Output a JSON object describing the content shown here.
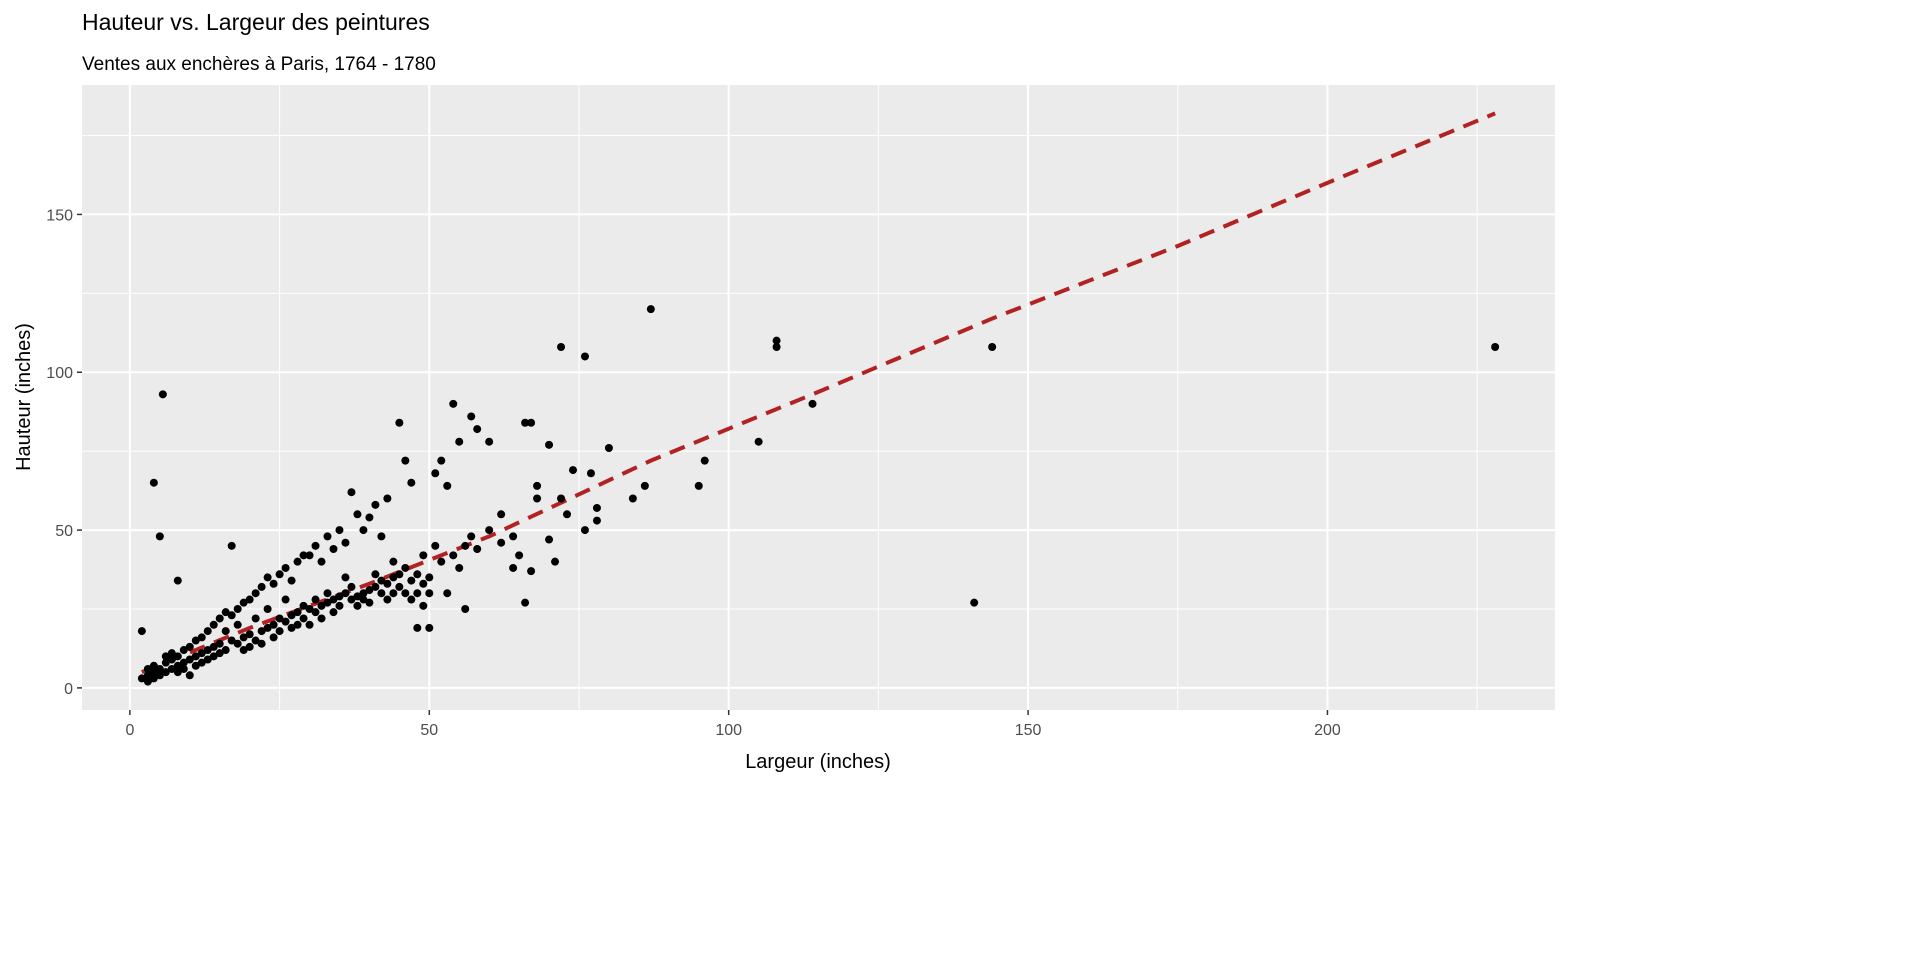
{
  "chart_data": {
    "type": "scatter",
    "title": "Hauteur vs. Largeur des peintures",
    "subtitle": "Ventes aux enchères à Paris, 1764 - 1780",
    "xlabel": "Largeur (inches)",
    "ylabel": "Hauteur (inches)",
    "xlim": [
      -8,
      238
    ],
    "ylim": [
      -7,
      191
    ],
    "xticks": [
      0,
      50,
      100,
      150,
      200
    ],
    "yticks": [
      0,
      50,
      100,
      150
    ],
    "grid": true,
    "colors": {
      "points": "#000000",
      "trend": "#b22222",
      "panel": "#ebebeb",
      "grid": "#ffffff"
    },
    "trend_line": {
      "style": "dashed",
      "x": [
        2,
        20,
        40,
        60,
        87,
        114,
        144,
        175,
        200,
        228
      ],
      "y": [
        5,
        19,
        33,
        48,
        72,
        93,
        117,
        140,
        160,
        182
      ]
    },
    "points": [
      [
        2,
        18
      ],
      [
        5.5,
        93
      ],
      [
        4,
        65
      ],
      [
        5,
        48
      ],
      [
        8,
        34
      ],
      [
        17,
        45
      ],
      [
        2,
        3
      ],
      [
        3,
        2
      ],
      [
        3,
        4
      ],
      [
        4,
        3
      ],
      [
        4,
        5
      ],
      [
        5,
        4
      ],
      [
        5,
        6
      ],
      [
        6,
        5
      ],
      [
        6,
        8
      ],
      [
        7,
        6
      ],
      [
        7,
        9
      ],
      [
        8,
        7
      ],
      [
        8,
        10
      ],
      [
        9,
        8
      ],
      [
        9,
        12
      ],
      [
        10,
        9
      ],
      [
        10,
        13
      ],
      [
        11,
        10
      ],
      [
        11,
        15
      ],
      [
        12,
        11
      ],
      [
        12,
        16
      ],
      [
        13,
        12
      ],
      [
        13,
        18
      ],
      [
        14,
        13
      ],
      [
        14,
        20
      ],
      [
        15,
        14
      ],
      [
        15,
        22
      ],
      [
        16,
        12
      ],
      [
        16,
        24
      ],
      [
        17,
        15
      ],
      [
        17,
        23
      ],
      [
        18,
        14
      ],
      [
        18,
        25
      ],
      [
        19,
        16
      ],
      [
        19,
        27
      ],
      [
        20,
        17
      ],
      [
        20,
        28
      ],
      [
        21,
        15
      ],
      [
        21,
        30
      ],
      [
        22,
        18
      ],
      [
        22,
        32
      ],
      [
        23,
        19
      ],
      [
        23,
        35
      ],
      [
        24,
        20
      ],
      [
        24,
        33
      ],
      [
        25,
        22
      ],
      [
        25,
        36
      ],
      [
        26,
        21
      ],
      [
        26,
        38
      ],
      [
        27,
        23
      ],
      [
        27,
        34
      ],
      [
        28,
        24
      ],
      [
        28,
        40
      ],
      [
        29,
        22
      ],
      [
        29,
        42
      ],
      [
        30,
        25
      ],
      [
        30,
        42
      ],
      [
        31,
        24
      ],
      [
        31,
        45
      ],
      [
        32,
        26
      ],
      [
        32,
        40
      ],
      [
        33,
        27
      ],
      [
        33,
        48
      ],
      [
        34,
        28
      ],
      [
        34,
        44
      ],
      [
        35,
        29
      ],
      [
        35,
        50
      ],
      [
        36,
        30
      ],
      [
        36,
        46
      ],
      [
        37,
        28
      ],
      [
        37,
        62
      ],
      [
        38,
        29
      ],
      [
        38,
        55
      ],
      [
        39,
        30
      ],
      [
        39,
        50
      ],
      [
        40,
        31
      ],
      [
        40,
        54
      ],
      [
        41,
        32
      ],
      [
        41,
        58
      ],
      [
        42,
        30
      ],
      [
        42,
        48
      ],
      [
        43,
        33
      ],
      [
        43,
        60
      ],
      [
        44,
        35
      ],
      [
        44,
        40
      ],
      [
        45,
        36
      ],
      [
        45,
        84
      ],
      [
        46,
        30
      ],
      [
        46,
        72
      ],
      [
        47,
        34
      ],
      [
        47,
        65
      ],
      [
        48,
        36
      ],
      [
        48,
        19
      ],
      [
        49,
        33
      ],
      [
        49,
        42
      ],
      [
        50,
        35
      ],
      [
        50,
        19
      ],
      [
        51,
        45
      ],
      [
        51,
        68
      ],
      [
        52,
        40
      ],
      [
        52,
        72
      ],
      [
        53,
        30
      ],
      [
        53,
        64
      ],
      [
        54,
        90
      ],
      [
        54,
        42
      ],
      [
        55,
        78
      ],
      [
        55,
        38
      ],
      [
        56,
        45
      ],
      [
        56,
        25
      ],
      [
        57,
        86
      ],
      [
        57,
        48
      ],
      [
        58,
        82
      ],
      [
        58,
        44
      ],
      [
        60,
        78
      ],
      [
        60,
        50
      ],
      [
        62,
        46
      ],
      [
        62,
        55
      ],
      [
        64,
        48
      ],
      [
        64,
        38
      ],
      [
        65,
        42
      ],
      [
        66,
        27
      ],
      [
        66,
        84
      ],
      [
        67,
        84
      ],
      [
        67,
        37
      ],
      [
        68,
        60
      ],
      [
        68,
        64
      ],
      [
        70,
        77
      ],
      [
        70,
        47
      ],
      [
        71,
        40
      ],
      [
        72,
        108
      ],
      [
        72,
        60
      ],
      [
        73,
        55
      ],
      [
        74,
        69
      ],
      [
        76,
        105
      ],
      [
        76,
        50
      ],
      [
        77,
        68
      ],
      [
        78,
        57
      ],
      [
        78,
        53
      ],
      [
        80,
        76
      ],
      [
        84,
        60
      ],
      [
        86,
        64
      ],
      [
        87,
        120
      ],
      [
        95,
        64
      ],
      [
        96,
        72
      ],
      [
        105,
        78
      ],
      [
        108,
        110
      ],
      [
        108,
        108
      ],
      [
        114,
        90
      ],
      [
        141,
        27
      ],
      [
        144,
        108
      ],
      [
        228,
        108
      ],
      [
        3,
        6
      ],
      [
        4,
        7
      ],
      [
        6,
        10
      ],
      [
        7,
        11
      ],
      [
        8,
        5
      ],
      [
        9,
        6
      ],
      [
        10,
        4
      ],
      [
        11,
        7
      ],
      [
        12,
        8
      ],
      [
        13,
        9
      ],
      [
        14,
        10
      ],
      [
        15,
        11
      ],
      [
        16,
        18
      ],
      [
        18,
        20
      ],
      [
        19,
        12
      ],
      [
        20,
        13
      ],
      [
        21,
        22
      ],
      [
        22,
        14
      ],
      [
        23,
        25
      ],
      [
        24,
        16
      ],
      [
        25,
        18
      ],
      [
        26,
        28
      ],
      [
        27,
        19
      ],
      [
        28,
        20
      ],
      [
        29,
        26
      ],
      [
        30,
        20
      ],
      [
        31,
        28
      ],
      [
        32,
        22
      ],
      [
        33,
        30
      ],
      [
        34,
        24
      ],
      [
        35,
        26
      ],
      [
        36,
        35
      ],
      [
        37,
        32
      ],
      [
        38,
        26
      ],
      [
        39,
        28
      ],
      [
        40,
        27
      ],
      [
        41,
        36
      ],
      [
        42,
        34
      ],
      [
        43,
        28
      ],
      [
        44,
        30
      ],
      [
        45,
        32
      ],
      [
        46,
        38
      ],
      [
        47,
        28
      ],
      [
        48,
        30
      ],
      [
        49,
        26
      ],
      [
        50,
        30
      ]
    ]
  }
}
